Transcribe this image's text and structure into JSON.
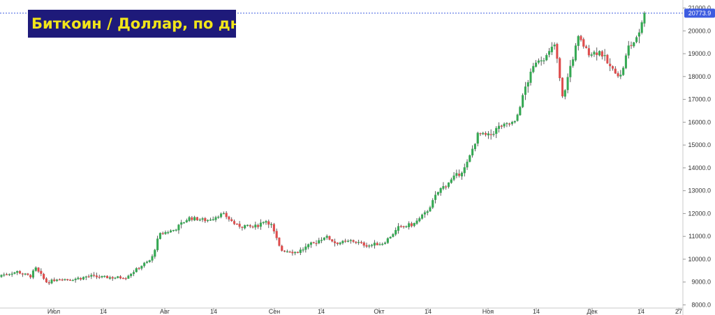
{
  "chart_data": {
    "type": "candlestick",
    "title": "Биткоин / Доллар, по дням",
    "current_price": "20773.9",
    "ylim": [
      8000,
      21500
    ],
    "y_ticks": [
      "8000.0",
      "9000.0",
      "10000.0",
      "11000.0",
      "12000.0",
      "13000.0",
      "14000.0",
      "15000.0",
      "16000.0",
      "17000.0",
      "18000.0",
      "19000.0",
      "20000.0",
      "21000.0"
    ],
    "x_ticks": [
      "Июл",
      "14",
      "Авг",
      "14",
      "Сен",
      "14",
      "Окт",
      "14",
      "Ноя",
      "14",
      "Дек",
      "14",
      "27"
    ],
    "candle_count": 170,
    "anchors": [
      [
        0,
        9300
      ],
      [
        6,
        9450
      ],
      [
        11,
        9250
      ],
      [
        13,
        9600
      ],
      [
        17,
        9000
      ],
      [
        22,
        9150
      ],
      [
        26,
        9100
      ],
      [
        33,
        9250
      ],
      [
        40,
        9200
      ],
      [
        47,
        9200
      ],
      [
        53,
        9700
      ],
      [
        57,
        10000
      ],
      [
        60,
        11100
      ],
      [
        66,
        11300
      ],
      [
        71,
        11800
      ],
      [
        78,
        11700
      ],
      [
        84,
        12000
      ],
      [
        89,
        11500
      ],
      [
        96,
        11400
      ],
      [
        100,
        11700
      ],
      [
        102,
        11600
      ],
      [
        106,
        10400
      ],
      [
        112,
        10300
      ],
      [
        117,
        10600
      ],
      [
        123,
        11000
      ],
      [
        127,
        10700
      ],
      [
        133,
        10800
      ],
      [
        139,
        10600
      ],
      [
        145,
        10700
      ],
      [
        151,
        11400
      ],
      [
        156,
        11500
      ],
      [
        161,
        12000
      ],
      [
        166,
        13000
      ],
      [
        171,
        13500
      ],
      [
        176,
        14000
      ],
      [
        181,
        15500
      ],
      [
        185,
        15400
      ],
      [
        189,
        15800
      ],
      [
        195,
        16000
      ],
      [
        199,
        17600
      ],
      [
        203,
        18700
      ],
      [
        207,
        18900
      ],
      [
        210,
        19400
      ],
      [
        213,
        17000
      ],
      [
        216,
        18500
      ],
      [
        219,
        19700
      ],
      [
        223,
        19000
      ],
      [
        227,
        19100
      ],
      [
        231,
        18400
      ],
      [
        235,
        18000
      ],
      [
        238,
        19300
      ],
      [
        241,
        19600
      ],
      [
        244,
        20773
      ]
    ],
    "colors": {
      "up": "#35a853",
      "down": "#de4c4c",
      "wick": "#333333",
      "price_line": "#3d5ce0",
      "price_tag": "#3d5ce0"
    }
  }
}
